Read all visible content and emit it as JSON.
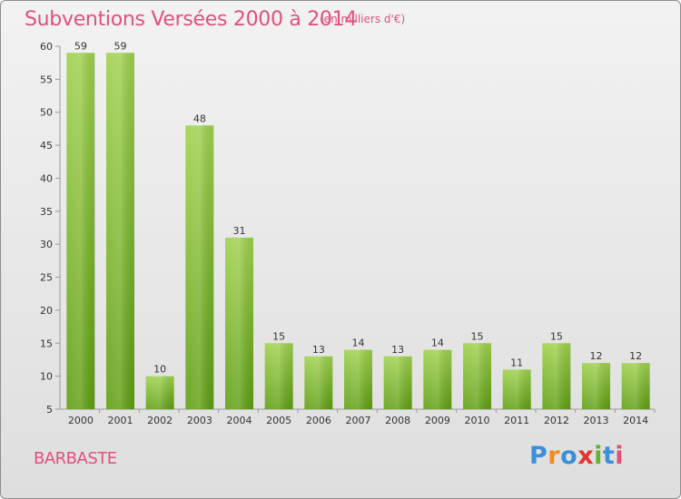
{
  "header": {
    "title": "Subventions Versées 2000 à 2014",
    "subtitle": "(en milliers d'€)"
  },
  "commune": "BARBASTE",
  "logo": {
    "text": "Proxiti",
    "letters": [
      "P",
      "r",
      "o",
      "x",
      "i",
      "t",
      "i"
    ],
    "colors": [
      "#3b8fd9",
      "#f28c1e",
      "#3b8fd9",
      "#e6342a",
      "#66b32e",
      "#3b8fd9",
      "#e0517a"
    ]
  },
  "chart_data": {
    "type": "bar",
    "categories": [
      "2000",
      "2001",
      "2002",
      "2003",
      "2004",
      "2005",
      "2006",
      "2007",
      "2008",
      "2009",
      "2010",
      "2011",
      "2012",
      "2013",
      "2014"
    ],
    "values": [
      59,
      59,
      10,
      48,
      31,
      15,
      13,
      14,
      13,
      14,
      15,
      11,
      15,
      12,
      12
    ],
    "title": "Subventions Versées 2000 à 2014",
    "ylabel": "",
    "xlabel": "",
    "ylim": [
      5,
      60
    ],
    "yticks": [
      5,
      10,
      15,
      20,
      25,
      30,
      35,
      40,
      45,
      50,
      55,
      60
    ],
    "grid": false,
    "bar_color": "#7dbf2e"
  }
}
